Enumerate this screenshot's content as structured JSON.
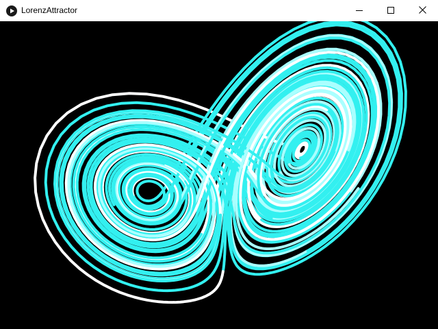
{
  "window": {
    "title": "LorenzAttractor",
    "icon": "processing-play-icon",
    "controls": {
      "minimize": "minimize-icon",
      "maximize": "maximize-icon",
      "close": "close-icon"
    }
  },
  "sketch": {
    "background": "#000000",
    "colors": {
      "primary": "#33f0f0",
      "light": "#aaffff",
      "white": "#ffffff"
    }
  }
}
